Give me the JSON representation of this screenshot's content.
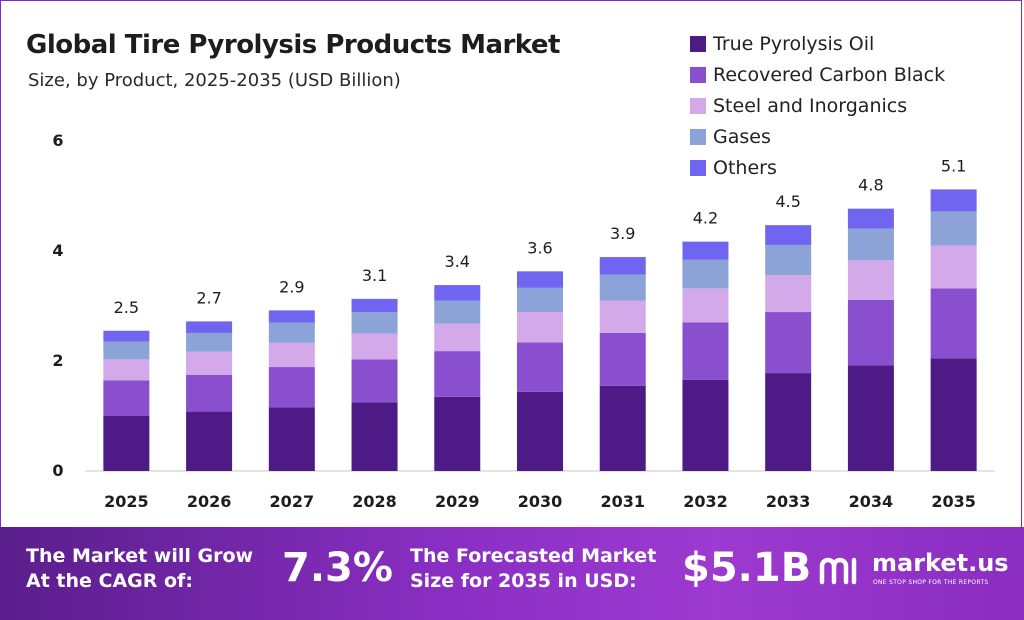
{
  "chart_data": {
    "type": "bar",
    "stacked": true,
    "title": "Global Tire Pyrolysis Products Market",
    "subtitle": "Size, by Product, 2025-2035 (USD Billion)",
    "categories": [
      "2025",
      "2026",
      "2027",
      "2028",
      "2029",
      "2030",
      "2031",
      "2032",
      "2033",
      "2034",
      "2035"
    ],
    "totals": [
      "2.5",
      "2.7",
      "2.9",
      "3.1",
      "3.4",
      "3.6",
      "3.9",
      "4.2",
      "4.5",
      "4.8",
      "5.1"
    ],
    "series": [
      {
        "name": "True Pyrolysis Oil",
        "color": "#4e1a86",
        "values": [
          1.0,
          1.08,
          1.16,
          1.25,
          1.35,
          1.44,
          1.55,
          1.66,
          1.78,
          1.92,
          2.05
        ]
      },
      {
        "name": "Recovered Carbon Black",
        "color": "#8a4fcf",
        "values": [
          0.65,
          0.67,
          0.73,
          0.78,
          0.83,
          0.9,
          0.96,
          1.04,
          1.11,
          1.19,
          1.27
        ]
      },
      {
        "name": "Steel and Inorganics",
        "color": "#d4a9ea",
        "values": [
          0.38,
          0.42,
          0.44,
          0.47,
          0.5,
          0.55,
          0.59,
          0.62,
          0.67,
          0.72,
          0.78
        ]
      },
      {
        "name": "Gases",
        "color": "#8ba3d6",
        "values": [
          0.32,
          0.34,
          0.37,
          0.39,
          0.42,
          0.44,
          0.47,
          0.52,
          0.55,
          0.58,
          0.62
        ]
      },
      {
        "name": "Others",
        "color": "#7065f0",
        "values": [
          0.2,
          0.21,
          0.22,
          0.24,
          0.28,
          0.3,
          0.32,
          0.33,
          0.36,
          0.36,
          0.4
        ]
      }
    ],
    "yticks": [
      "0",
      "2",
      "4",
      "6"
    ],
    "ylim": [
      0,
      6
    ],
    "grid": false,
    "legend_position": "top-right"
  },
  "footer": {
    "cagr_label_line1": "The Market will Grow",
    "cagr_label_line2": "At the CAGR of:",
    "cagr_value": "7.3%",
    "forecast_label_line1": "The Forecasted Market",
    "forecast_label_line2": "Size for 2035 in USD:",
    "forecast_value": "$5.1B",
    "brand_name": "market.us",
    "brand_tagline": "ONE STOP SHOP FOR THE REPORTS"
  }
}
